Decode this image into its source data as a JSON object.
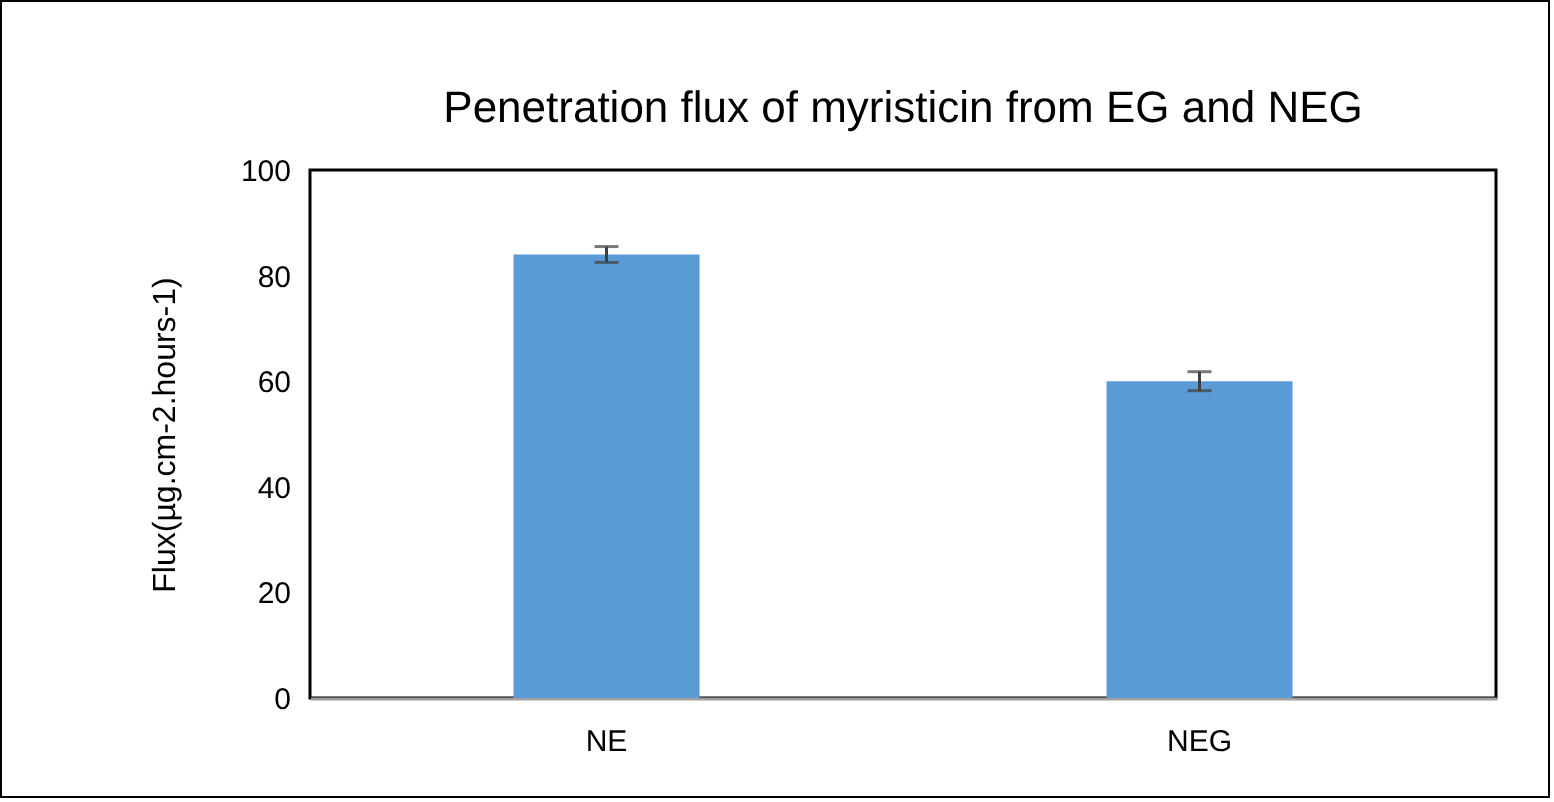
{
  "chart_data": {
    "type": "bar",
    "title": "Penetration flux of myristicin from EG and NEG",
    "ylabel": "Flux(µg.cm-2.hours-1)",
    "categories": [
      "NE",
      "NEG"
    ],
    "values": [
      84,
      60
    ],
    "errors": [
      1.5,
      1.8
    ],
    "color": "#5b9bd5",
    "ylim": [
      0,
      100
    ],
    "yticks": [
      0,
      20,
      40,
      60,
      80,
      100
    ],
    "grid": false
  }
}
